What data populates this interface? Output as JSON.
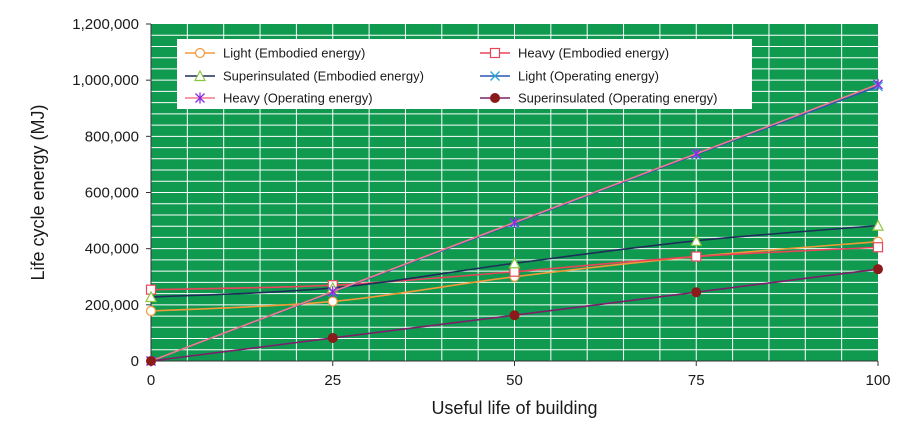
{
  "chart_data": {
    "type": "line",
    "title": "",
    "xlabel": "Useful life of building",
    "ylabel": "Life cycle energy (MJ)",
    "x": [
      0,
      25,
      50,
      75,
      100
    ],
    "x_ticks": [
      "0",
      "25",
      "50",
      "75",
      "100"
    ],
    "xlim": [
      0,
      100
    ],
    "ylim": [
      0,
      1200000
    ],
    "y_ticks": [
      "0",
      "200,000",
      "400,000",
      "600,000",
      "800,000",
      "1,000,000",
      "1,200,000"
    ],
    "grid": true,
    "legend_position": "top",
    "background_color": "#0f9a4f",
    "gridline_color": "#ffffff",
    "series": [
      {
        "name": "Light (Embodied energy)",
        "values": [
          178000,
          212000,
          300000,
          372000,
          425000
        ],
        "color": "#f29a3a",
        "marker": "circle-open"
      },
      {
        "name": "Heavy (Embodied energy)",
        "values": [
          254000,
          270000,
          318000,
          372000,
          405000
        ],
        "color": "#e8455b",
        "marker": "square-open"
      },
      {
        "name": "Superinsulated (Embodied energy)",
        "values": [
          228000,
          260000,
          348000,
          428000,
          482000
        ],
        "color": "#1f2d5a",
        "marker": "triangle-open",
        "marker_color": "#8cc63f"
      },
      {
        "name": "Light (Operating energy)",
        "values": [
          0,
          245000,
          490000,
          735000,
          978000
        ],
        "color": "#2c57b0",
        "marker": "x",
        "marker_color": "#2aa8d8"
      },
      {
        "name": "Heavy (Operating energy)",
        "values": [
          0,
          247000,
          493000,
          738000,
          985000
        ],
        "color": "#f07a8a",
        "marker": "star",
        "marker_color": "#8a2be2"
      },
      {
        "name": "Superinsulated (Operating energy)",
        "values": [
          0,
          82000,
          163000,
          245000,
          327000
        ],
        "color": "#7b1f6b",
        "marker": "circle-filled",
        "marker_color": "#8b1a1a"
      }
    ]
  }
}
